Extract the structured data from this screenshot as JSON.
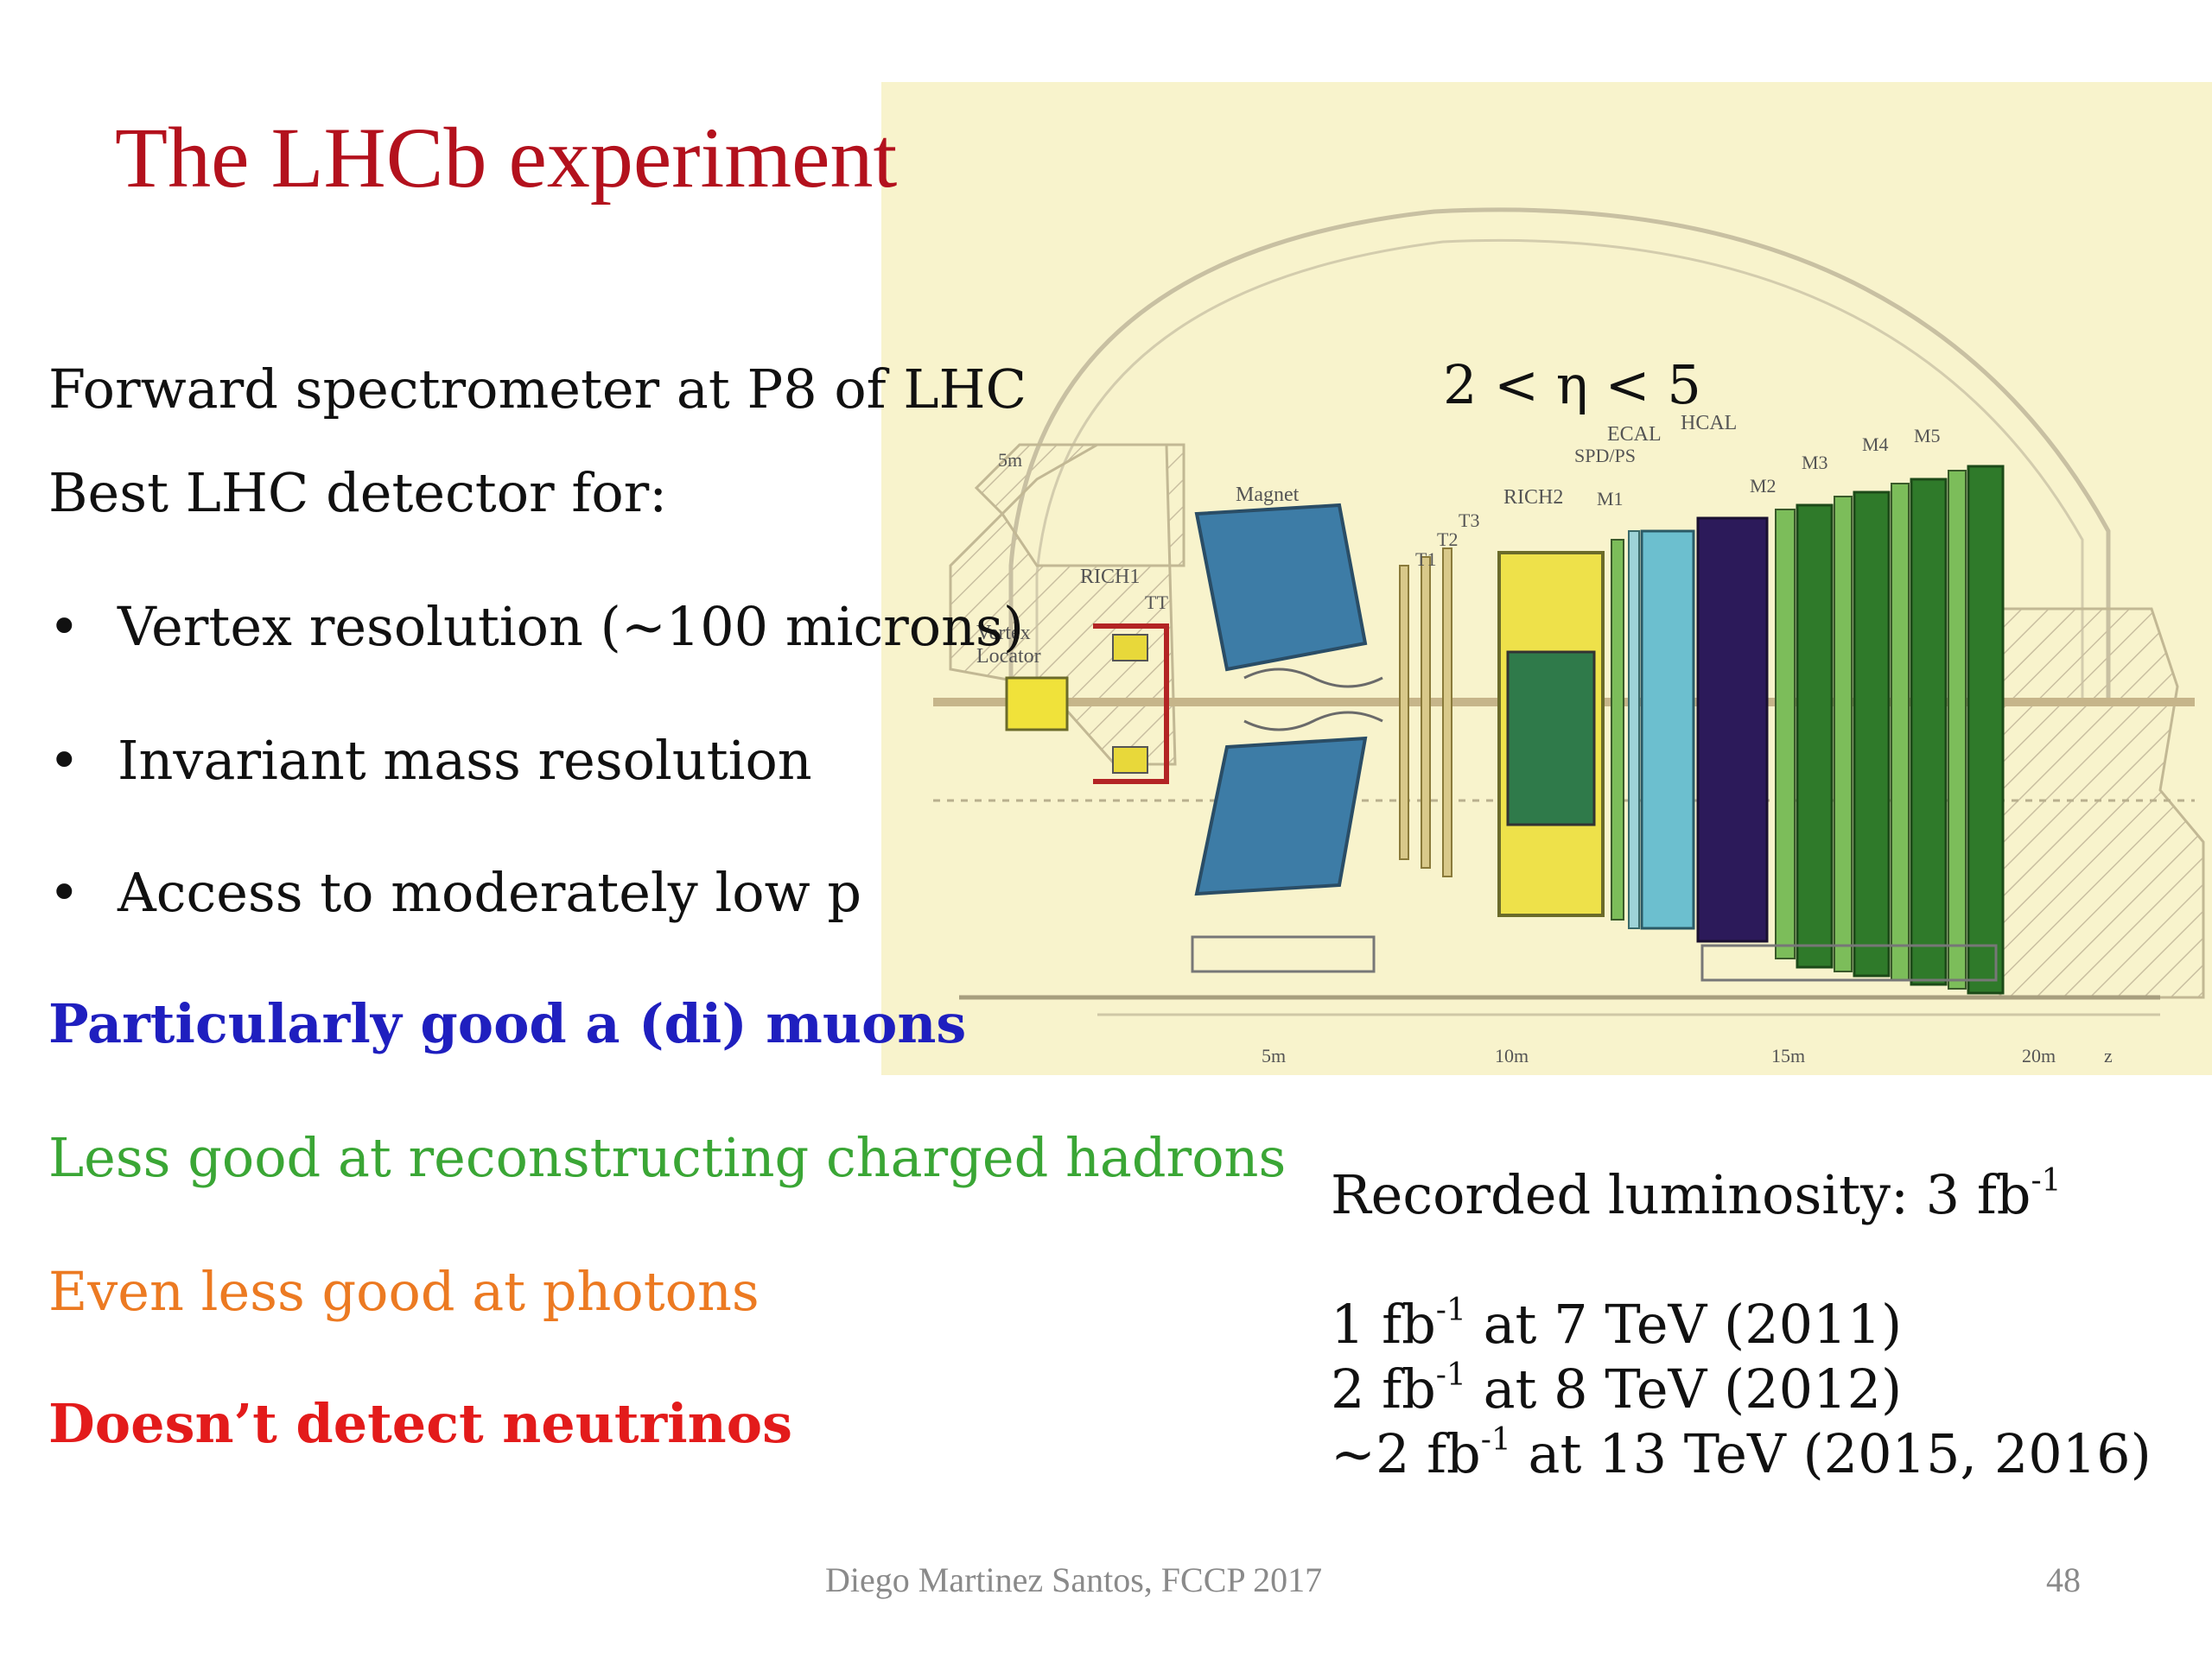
{
  "slide": {
    "title": "The LHCb experiment",
    "intro": [
      "Forward spectrometer at P8 of LHC",
      "Best LHC detector for:"
    ],
    "bullets": [
      "Vertex resolution (~100 microns)",
      "Invariant mass resolution",
      "Access to moderately low p"
    ],
    "bullet_marker": "•",
    "capabilities": [
      {
        "text": "Particularly good a (di) muons",
        "color": "#1f1fbf",
        "bold": true
      },
      {
        "text": "Less good at reconstructing charged hadrons",
        "color": "#3aa635",
        "bold": false
      },
      {
        "text": "Even less good at photons",
        "color": "#ec7a22",
        "bold": false
      },
      {
        "text": "Doesn’t detect neutrinos",
        "color": "#e31b1b",
        "bold": true
      }
    ],
    "eta_range": "2 < η < 5",
    "luminosity": {
      "recorded_prefix": "Recorded luminosity: 3 fb",
      "unit_sup": "-1",
      "rows": [
        {
          "prefix": "1 fb",
          "rest": " at 7 TeV (2011)"
        },
        {
          "prefix": "2 fb",
          "rest": " at 8 TeV (2012)"
        },
        {
          "prefix": "~2 fb",
          "rest": " at 13 TeV (2015, 2016)"
        }
      ]
    },
    "footer": {
      "author": "Diego Martinez Santos, FCCP 2017",
      "page": "48"
    }
  },
  "diagram": {
    "labels": {
      "vertex": "Vertex",
      "locator": "Locator",
      "rich1": "RICH1",
      "tt": "TT",
      "magnet": "Magnet",
      "t1": "T1",
      "t2": "T2",
      "t3": "T3",
      "rich2": "RICH2",
      "m1": "M1",
      "spd_ps": "SPD/PS",
      "ecal": "ECAL",
      "hcal": "HCAL",
      "m2": "M2",
      "m3": "M3",
      "m4": "M4",
      "m5": "M5",
      "y_5m": "5m",
      "x_5m": "5m",
      "x_10m": "10m",
      "x_15m": "15m",
      "x_20m": "20m",
      "z_axis": "z"
    },
    "colors": {
      "background": "#f8f3cc",
      "magnet": "#3d7ca6",
      "rich2": "#eee14a",
      "ecal": "#6cbfcf",
      "hcal": "#2c1a5a",
      "muon": "#2f7a2a",
      "muon_light": "#7cbd5a",
      "hatch": "#c9bfa0"
    }
  }
}
